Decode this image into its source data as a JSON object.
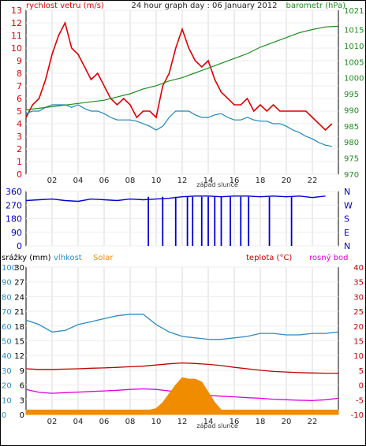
{
  "chart_data": [
    {
      "type": "line",
      "title": "24 hour graph day : 06 January 2012",
      "y_left_label": "rychlost vetru (m/s)",
      "y_right_label": "barometr (hPa)",
      "x_tick_labels": [
        "02",
        "04",
        "06",
        "08",
        "10",
        "12",
        "14",
        "16",
        "18",
        "20",
        "22"
      ],
      "x_marker_label": "západ slunce",
      "y_left_ticks": [
        0,
        1,
        2,
        3,
        4,
        5,
        6,
        7,
        8,
        9,
        10,
        11,
        12,
        13
      ],
      "y_left_range": [
        0,
        13
      ],
      "y_right_ticks": [
        970,
        975,
        980,
        985,
        990,
        995,
        1000,
        1005,
        1010,
        1015,
        1021
      ],
      "y_right_range": [
        970,
        1021
      ],
      "grid": true,
      "series": [
        {
          "name": "rychlost vetru",
          "color": "#e00000",
          "axis": "left",
          "x": [
            0,
            0.5,
            1,
            1.5,
            2,
            2.5,
            3,
            3.5,
            4,
            4.5,
            5,
            5.5,
            6,
            6.5,
            7,
            7.5,
            8,
            8.5,
            9,
            9.5,
            10,
            10.5,
            11,
            11.5,
            12,
            12.5,
            13,
            13.5,
            14,
            14.5,
            15,
            15.5,
            16,
            16.5,
            17,
            17.5,
            18,
            18.5,
            19,
            19.5,
            20,
            20.5,
            21,
            21.5,
            22,
            22.5,
            23,
            23.5
          ],
          "values": [
            4.5,
            5.5,
            6,
            7.5,
            9.5,
            11,
            12,
            10,
            9.5,
            8.5,
            7.5,
            8,
            7,
            6,
            5.5,
            6,
            5.5,
            4.5,
            5,
            5,
            4.5,
            7,
            8,
            10,
            11.5,
            10,
            9,
            8.5,
            9,
            7.5,
            6.5,
            6,
            5.5,
            5.5,
            6,
            5,
            5.5,
            5,
            5.5,
            5,
            5,
            5,
            5,
            5,
            4.5,
            4,
            3.5,
            4
          ]
        },
        {
          "name": "prumer vetru",
          "color": "#1a86b8",
          "axis": "left",
          "x": [
            0,
            0.5,
            1,
            1.5,
            2,
            2.5,
            3,
            3.5,
            4,
            4.5,
            5,
            5.5,
            6,
            6.5,
            7,
            7.5,
            8,
            8.5,
            9,
            9.5,
            10,
            10.5,
            11,
            11.5,
            12,
            12.5,
            13,
            13.5,
            14,
            14.5,
            15,
            15.5,
            16,
            16.5,
            17,
            17.5,
            18,
            18.5,
            19,
            19.5,
            20,
            20.5,
            21,
            21.5,
            22,
            22.5,
            23,
            23.5
          ],
          "values": [
            4.8,
            5,
            5,
            5.3,
            5.5,
            5.5,
            5.5,
            5.3,
            5.5,
            5.2,
            5,
            5,
            4.8,
            4.5,
            4.3,
            4.3,
            4.3,
            4.2,
            4,
            3.8,
            3.5,
            3.8,
            4.5,
            5,
            5,
            5,
            4.7,
            4.5,
            4.5,
            4.7,
            4.8,
            4.5,
            4.3,
            4.3,
            4.5,
            4.3,
            4.2,
            4.2,
            4,
            4,
            3.8,
            3.5,
            3.3,
            3,
            2.8,
            2.5,
            2.3,
            2.2
          ]
        },
        {
          "name": "barometr",
          "color": "#1e8c1e",
          "axis": "right",
          "x": [
            0,
            1,
            2,
            3,
            4,
            5,
            6,
            7,
            8,
            9,
            10,
            11,
            12,
            13,
            14,
            15,
            16,
            17,
            18,
            19,
            20,
            21,
            22,
            23,
            24
          ],
          "values": [
            990,
            990.5,
            991,
            991.5,
            992,
            992.5,
            993,
            994,
            995,
            996.5,
            997.5,
            999,
            1000,
            1001.5,
            1003,
            1004.5,
            1006,
            1007.5,
            1009.5,
            1011,
            1012.5,
            1014,
            1015,
            1015.8,
            1016
          ]
        }
      ]
    },
    {
      "type": "line",
      "y_left_ticks": [
        0,
        90,
        180,
        270,
        360
      ],
      "y_left_range": [
        0,
        360
      ],
      "y_right_tick_labels": [
        "N",
        "W",
        "S",
        "E",
        "N"
      ],
      "grid": true,
      "series": [
        {
          "name": "smer vetru",
          "color": "#0000d0",
          "x": [
            0,
            1,
            2,
            3,
            4,
            5,
            6,
            7,
            8,
            9,
            10,
            11,
            12,
            13,
            14,
            15,
            16,
            17,
            18,
            19,
            20,
            21,
            22,
            23
          ],
          "values": [
            300,
            305,
            310,
            300,
            295,
            310,
            305,
            300,
            310,
            305,
            310,
            315,
            325,
            330,
            330,
            325,
            330,
            330,
            325,
            330,
            325,
            330,
            320,
            330
          ]
        }
      ],
      "dropouts": [
        9.4,
        10.5,
        11.5,
        12.4,
        12.8,
        13.5,
        14,
        14.5,
        15,
        15.7,
        16.5,
        17.1,
        18.7,
        20.4
      ]
    },
    {
      "type": "line",
      "y_left_label_1": "srážky (mm)",
      "y_left_label_2": "vlhkost",
      "y_left_label_3": "Solar",
      "y_right_label_1": "teplota (°C)",
      "y_right_label_2": "rosný bod",
      "x_tick_labels": [
        "02",
        "04",
        "06",
        "08",
        "10",
        "12",
        "14",
        "16",
        "18",
        "20",
        "22"
      ],
      "x_marker_label": "západ slunce",
      "y_rain_ticks": [
        0,
        3,
        6,
        9,
        12,
        15,
        18,
        21,
        24,
        27,
        30
      ],
      "y_rain_range": [
        0,
        30
      ],
      "y_hum_ticks": [
        0,
        10,
        20,
        30,
        40,
        50,
        60,
        70,
        80,
        90,
        100
      ],
      "y_hum_range": [
        0,
        100
      ],
      "y_temp_ticks": [
        -10,
        -5,
        0,
        5,
        10,
        15,
        20,
        25,
        30,
        35,
        40
      ],
      "y_temp_range": [
        -10,
        40
      ],
      "grid": true,
      "series": [
        {
          "name": "vlhkost",
          "color": "#2d8bc4",
          "axis": "humidity",
          "x": [
            0,
            1,
            2,
            3,
            4,
            5,
            6,
            7,
            8,
            9,
            10,
            11,
            12,
            13,
            14,
            15,
            16,
            17,
            18,
            19,
            20,
            21,
            22,
            23,
            24
          ],
          "values": [
            64,
            61,
            56,
            57,
            61,
            63,
            65,
            67,
            68,
            68,
            61,
            56,
            53,
            52,
            51,
            51,
            52,
            53,
            55,
            55,
            54,
            54,
            55,
            55,
            56
          ]
        },
        {
          "name": "teplota",
          "color": "#c00000",
          "axis": "temperature",
          "x": [
            0,
            1,
            2,
            3,
            4,
            5,
            6,
            7,
            8,
            9,
            10,
            11,
            12,
            13,
            14,
            15,
            16,
            17,
            18,
            19,
            20,
            21,
            22,
            23,
            24
          ],
          "values": [
            5.5,
            5.3,
            5.3,
            5.4,
            5.5,
            5.7,
            5.8,
            6,
            6.2,
            6.4,
            6.8,
            7.2,
            7.5,
            7.3,
            7,
            6.6,
            6,
            5.5,
            5,
            4.6,
            4.4,
            4.2,
            4.1,
            4,
            4
          ]
        },
        {
          "name": "rosný bod",
          "color": "#e000e0",
          "axis": "temperature",
          "x": [
            0,
            1,
            2,
            3,
            4,
            5,
            6,
            7,
            8,
            9,
            10,
            11,
            12,
            13,
            14,
            15,
            16,
            17,
            18,
            19,
            20,
            21,
            22,
            23,
            24
          ],
          "values": [
            -1.5,
            -2.5,
            -2.8,
            -2.6,
            -2.4,
            -2.2,
            -2,
            -1.8,
            -1.5,
            -1.3,
            -1.5,
            -2,
            -2.5,
            -3,
            -3.5,
            -3.8,
            -4,
            -4.3,
            -4.5,
            -4.8,
            -5,
            -5.2,
            -5.3,
            -5,
            -4.5
          ]
        },
        {
          "name": "Solar",
          "color": "#f08c00",
          "type": "area",
          "axis": "humidity",
          "x": [
            0,
            9,
            9.5,
            10,
            10.5,
            11,
            11.5,
            12,
            12.5,
            13,
            13.5,
            14,
            14.5,
            15,
            24
          ],
          "values": [
            3,
            3,
            3,
            4,
            8,
            14,
            20,
            25,
            24,
            24,
            22,
            15,
            8,
            3,
            3
          ]
        }
      ]
    }
  ]
}
